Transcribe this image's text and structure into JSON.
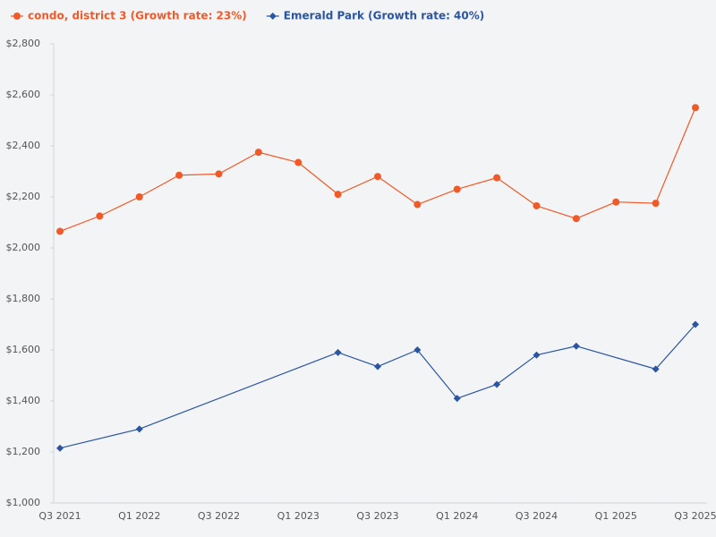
{
  "chart_data": {
    "type": "line",
    "categories": [
      "Q3 2021",
      null,
      "Q1 2022",
      null,
      "Q3 2022",
      null,
      "Q1 2023",
      null,
      "Q3 2023",
      null,
      "Q1 2024",
      null,
      "Q3 2024",
      null,
      "Q1 2025",
      null,
      "Q3 2025"
    ],
    "series": [
      {
        "name": "condo, district 3 (Growth rate: 23%)",
        "color": "#f05a28",
        "marker": "circle",
        "values": [
          2065,
          2125,
          2200,
          2285,
          2290,
          2375,
          2335,
          2210,
          2280,
          2170,
          2230,
          2275,
          2165,
          2115,
          2180,
          2175,
          2550
        ]
      },
      {
        "name": "Emerald Park (Growth rate: 40%)",
        "color": "#2a55a0",
        "marker": "diamond",
        "values": [
          1215,
          null,
          1290,
          null,
          null,
          null,
          null,
          1590,
          1535,
          1600,
          1410,
          1465,
          1580,
          1615,
          null,
          1525,
          1700
        ]
      }
    ],
    "ylim": [
      1000,
      2800
    ],
    "yticks": [
      {
        "value": 1000,
        "label": "$1,000"
      },
      {
        "value": 1200,
        "label": "$1,200"
      },
      {
        "value": 1400,
        "label": "$1,400"
      },
      {
        "value": 1600,
        "label": "$1,600"
      },
      {
        "value": 1800,
        "label": "$1,800"
      },
      {
        "value": 2000,
        "label": "$2,000"
      },
      {
        "value": 2200,
        "label": "$2,200"
      },
      {
        "value": 2400,
        "label": "$2,400"
      },
      {
        "value": 2600,
        "label": "$2,600"
      },
      {
        "value": 2800,
        "label": "$2,800"
      }
    ],
    "grid": false,
    "legend": "top-left"
  }
}
